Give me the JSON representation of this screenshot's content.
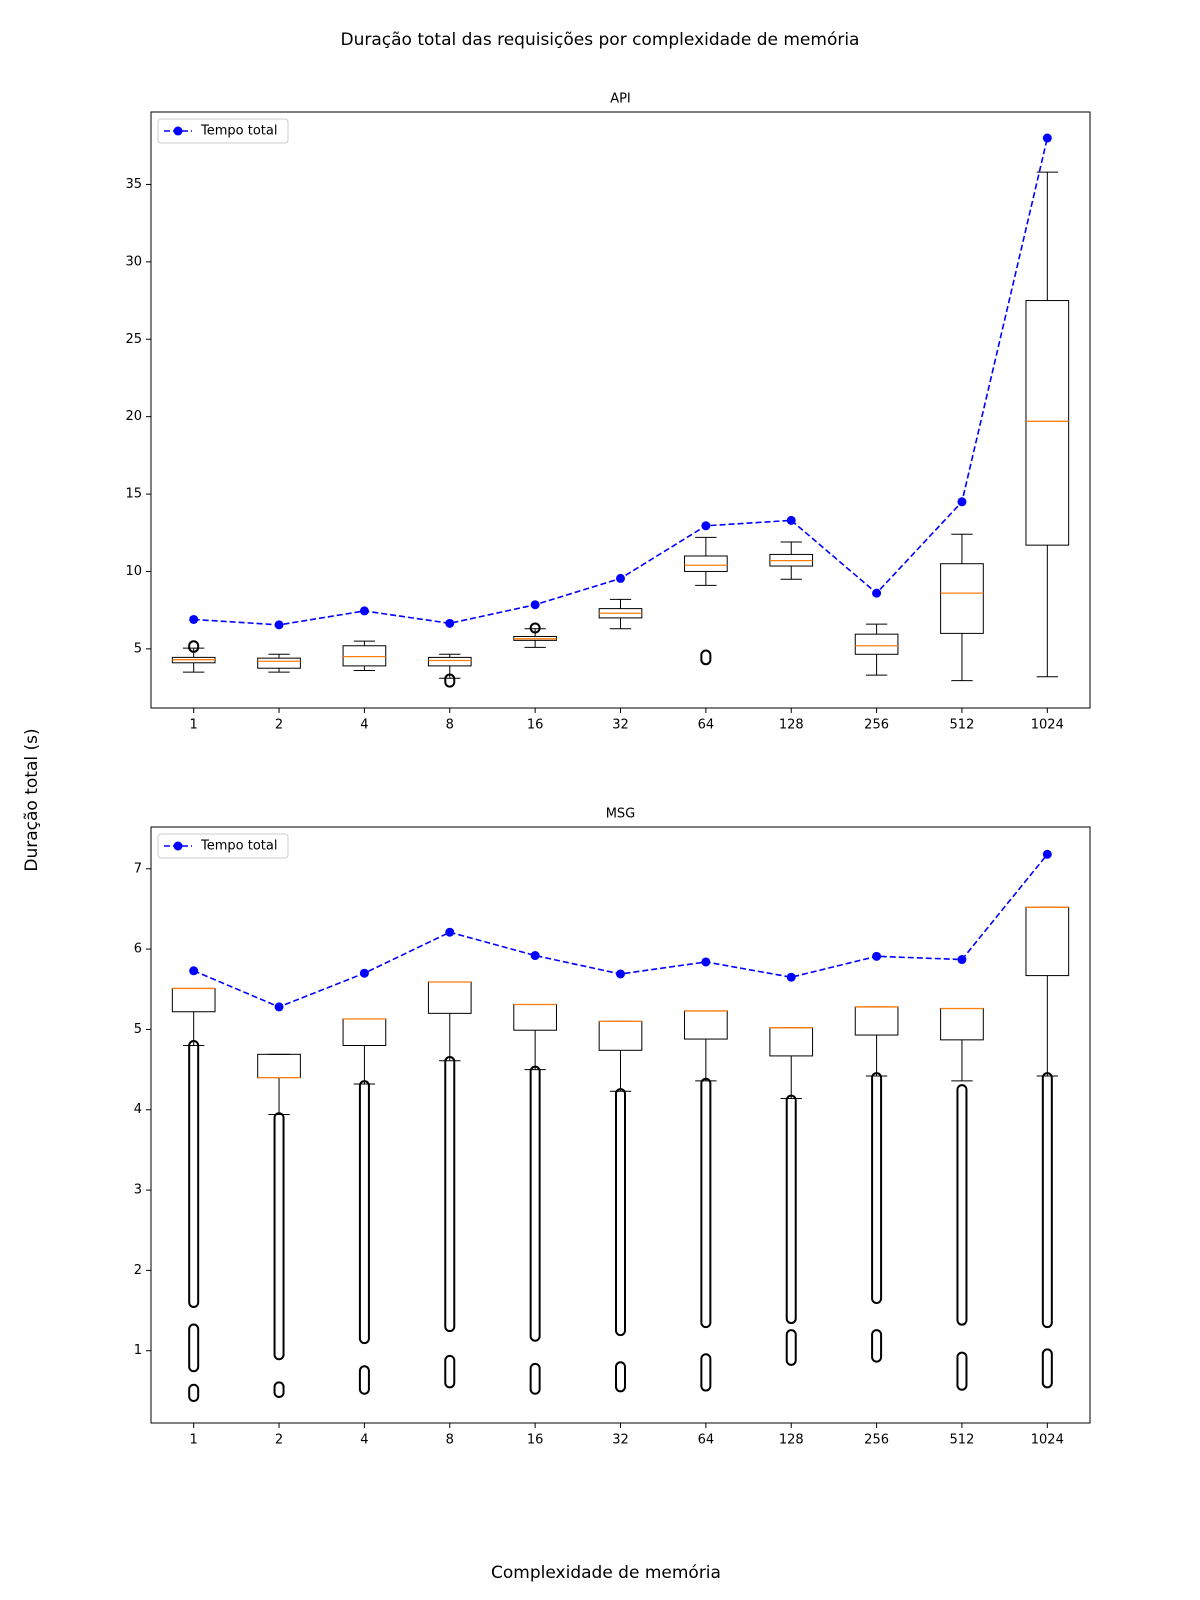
{
  "figure": {
    "title": "Duração total das requisições por complexidade de memória",
    "xlabel": "Complexidade de memória",
    "ylabel": "Duração total (s)"
  },
  "chart_data": [
    {
      "type": "box",
      "title": "API",
      "categories": [
        "1",
        "2",
        "4",
        "8",
        "16",
        "32",
        "64",
        "128",
        "256",
        "512",
        "1024"
      ],
      "boxes": {
        "whislo": [
          3.5,
          3.5,
          3.6,
          3.1,
          5.1,
          6.3,
          9.1,
          9.5,
          3.3,
          2.95,
          3.2
        ],
        "q1": [
          4.1,
          3.75,
          3.9,
          3.9,
          5.55,
          7.0,
          10.0,
          10.35,
          4.65,
          6.0,
          11.7
        ],
        "median": [
          4.3,
          4.2,
          4.5,
          4.25,
          5.65,
          7.3,
          10.4,
          10.7,
          5.2,
          8.6,
          19.7
        ],
        "q3": [
          4.45,
          4.4,
          5.2,
          4.45,
          5.8,
          7.6,
          11.0,
          11.1,
          5.95,
          10.5,
          27.5
        ],
        "whishi": [
          5.05,
          4.65,
          5.5,
          4.65,
          6.3,
          8.2,
          12.2,
          11.9,
          6.6,
          12.4,
          35.8
        ],
        "fliers": [
          [
            [
              5.1,
              5.2
            ]
          ],
          [],
          [],
          [
            [
              2.85,
              3.05
            ]
          ],
          [
            [
              6.35,
              6.35
            ]
          ],
          [],
          [
            [
              4.3,
              4.6
            ]
          ],
          [],
          [],
          [],
          []
        ]
      },
      "series": [
        {
          "name": "Tempo total",
          "color": "blue",
          "linestyle": "dashed",
          "marker": "o",
          "values": [
            6.9,
            6.55,
            7.45,
            6.65,
            7.85,
            9.55,
            12.95,
            13.3,
            8.6,
            14.5,
            38.0
          ]
        }
      ],
      "box_color": "black",
      "median_color": "#ff7f0e",
      "ylim": [
        1.18,
        39.68
      ],
      "yticks": [
        5,
        10,
        15,
        20,
        25,
        30,
        35
      ],
      "legend": "upper left"
    },
    {
      "type": "box",
      "title": "MSG",
      "categories": [
        "1",
        "2",
        "4",
        "8",
        "16",
        "32",
        "64",
        "128",
        "256",
        "512",
        "1024"
      ],
      "boxes": {
        "whislo": [
          4.8,
          3.94,
          4.32,
          4.61,
          4.5,
          4.23,
          4.36,
          4.14,
          4.42,
          4.36,
          4.42
        ],
        "q1": [
          5.22,
          4.4,
          4.8,
          5.2,
          4.99,
          4.74,
          4.88,
          4.67,
          4.93,
          4.87,
          5.67
        ],
        "median": [
          5.51,
          4.4,
          5.13,
          5.59,
          5.31,
          5.1,
          5.23,
          5.02,
          5.28,
          5.26,
          6.52
        ],
        "q3": [
          5.51,
          4.69,
          5.13,
          5.59,
          5.31,
          5.1,
          5.23,
          5.02,
          5.28,
          5.26,
          6.52
        ],
        "whishi": [
          5.51,
          4.69,
          5.13,
          5.59,
          5.31,
          5.1,
          5.23,
          5.02,
          5.28,
          5.26,
          6.52
        ],
        "fliers": [
          [
            [
              1.6,
              4.8
            ],
            [
              0.8,
              1.27
            ],
            [
              0.43,
              0.52
            ]
          ],
          [
            [
              0.95,
              3.9
            ],
            [
              0.48,
              0.55
            ]
          ],
          [
            [
              1.15,
              4.3
            ],
            [
              0.52,
              0.75
            ]
          ],
          [
            [
              1.3,
              4.6
            ],
            [
              0.6,
              0.88
            ]
          ],
          [
            [
              1.18,
              4.48
            ],
            [
              0.52,
              0.78
            ]
          ],
          [
            [
              1.25,
              4.2
            ],
            [
              0.55,
              0.8
            ]
          ],
          [
            [
              1.35,
              4.33
            ],
            [
              0.56,
              0.9
            ]
          ],
          [
            [
              1.4,
              4.12
            ],
            [
              0.88,
              1.2
            ]
          ],
          [
            [
              1.65,
              4.4
            ],
            [
              0.92,
              1.2
            ]
          ],
          [
            [
              1.38,
              4.25
            ],
            [
              0.57,
              0.92
            ]
          ],
          [
            [
              1.35,
              4.4
            ],
            [
              0.6,
              0.96
            ]
          ]
        ]
      },
      "series": [
        {
          "name": "Tempo total",
          "color": "blue",
          "linestyle": "dashed",
          "marker": "o",
          "values": [
            5.73,
            5.28,
            5.7,
            6.21,
            5.92,
            5.69,
            5.84,
            5.65,
            5.91,
            5.87,
            7.18
          ]
        }
      ],
      "box_color": "black",
      "median_color": "#ff7f0e",
      "ylim": [
        0.1,
        7.52
      ],
      "yticks": [
        1,
        2,
        3,
        4,
        5,
        6,
        7
      ],
      "legend": "upper left"
    }
  ]
}
